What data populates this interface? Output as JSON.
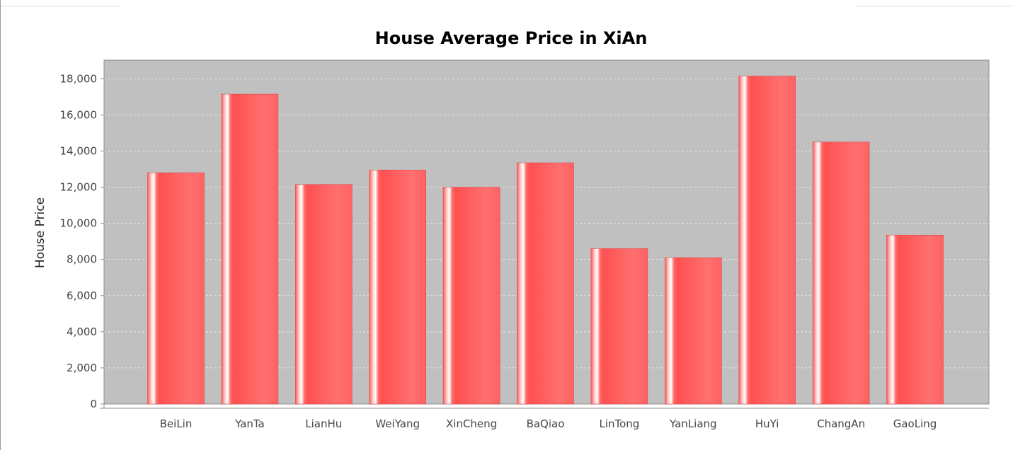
{
  "chart_data": {
    "type": "bar",
    "title": "House Average Price in XiAn",
    "xlabel": "",
    "ylabel": "House Price",
    "categories": [
      "BeiLin",
      "YanTa",
      "LianHu",
      "WeiYang",
      "XinCheng",
      "BaQiao",
      "LinTong",
      "YanLiang",
      "HuYi",
      "ChangAn",
      "GaoLing"
    ],
    "values": [
      12800,
      17150,
      12150,
      12950,
      12000,
      13350,
      8600,
      8100,
      18150,
      14500,
      9350
    ],
    "ylim": [
      0,
      19000
    ],
    "yticks": [
      0,
      2000,
      4000,
      6000,
      8000,
      10000,
      12000,
      14000,
      16000,
      18000
    ],
    "ytick_labels": [
      "0",
      "2,000",
      "4,000",
      "6,000",
      "8,000",
      "10,000",
      "12,000",
      "14,000",
      "16,000",
      "18,000"
    ],
    "grid": true,
    "legend": "none",
    "colors": {
      "plot_background": "#c0c0c0",
      "bar": "#ff5a5a",
      "bar_highlight": "#ffffff",
      "grid": "#e8e8e8"
    }
  }
}
